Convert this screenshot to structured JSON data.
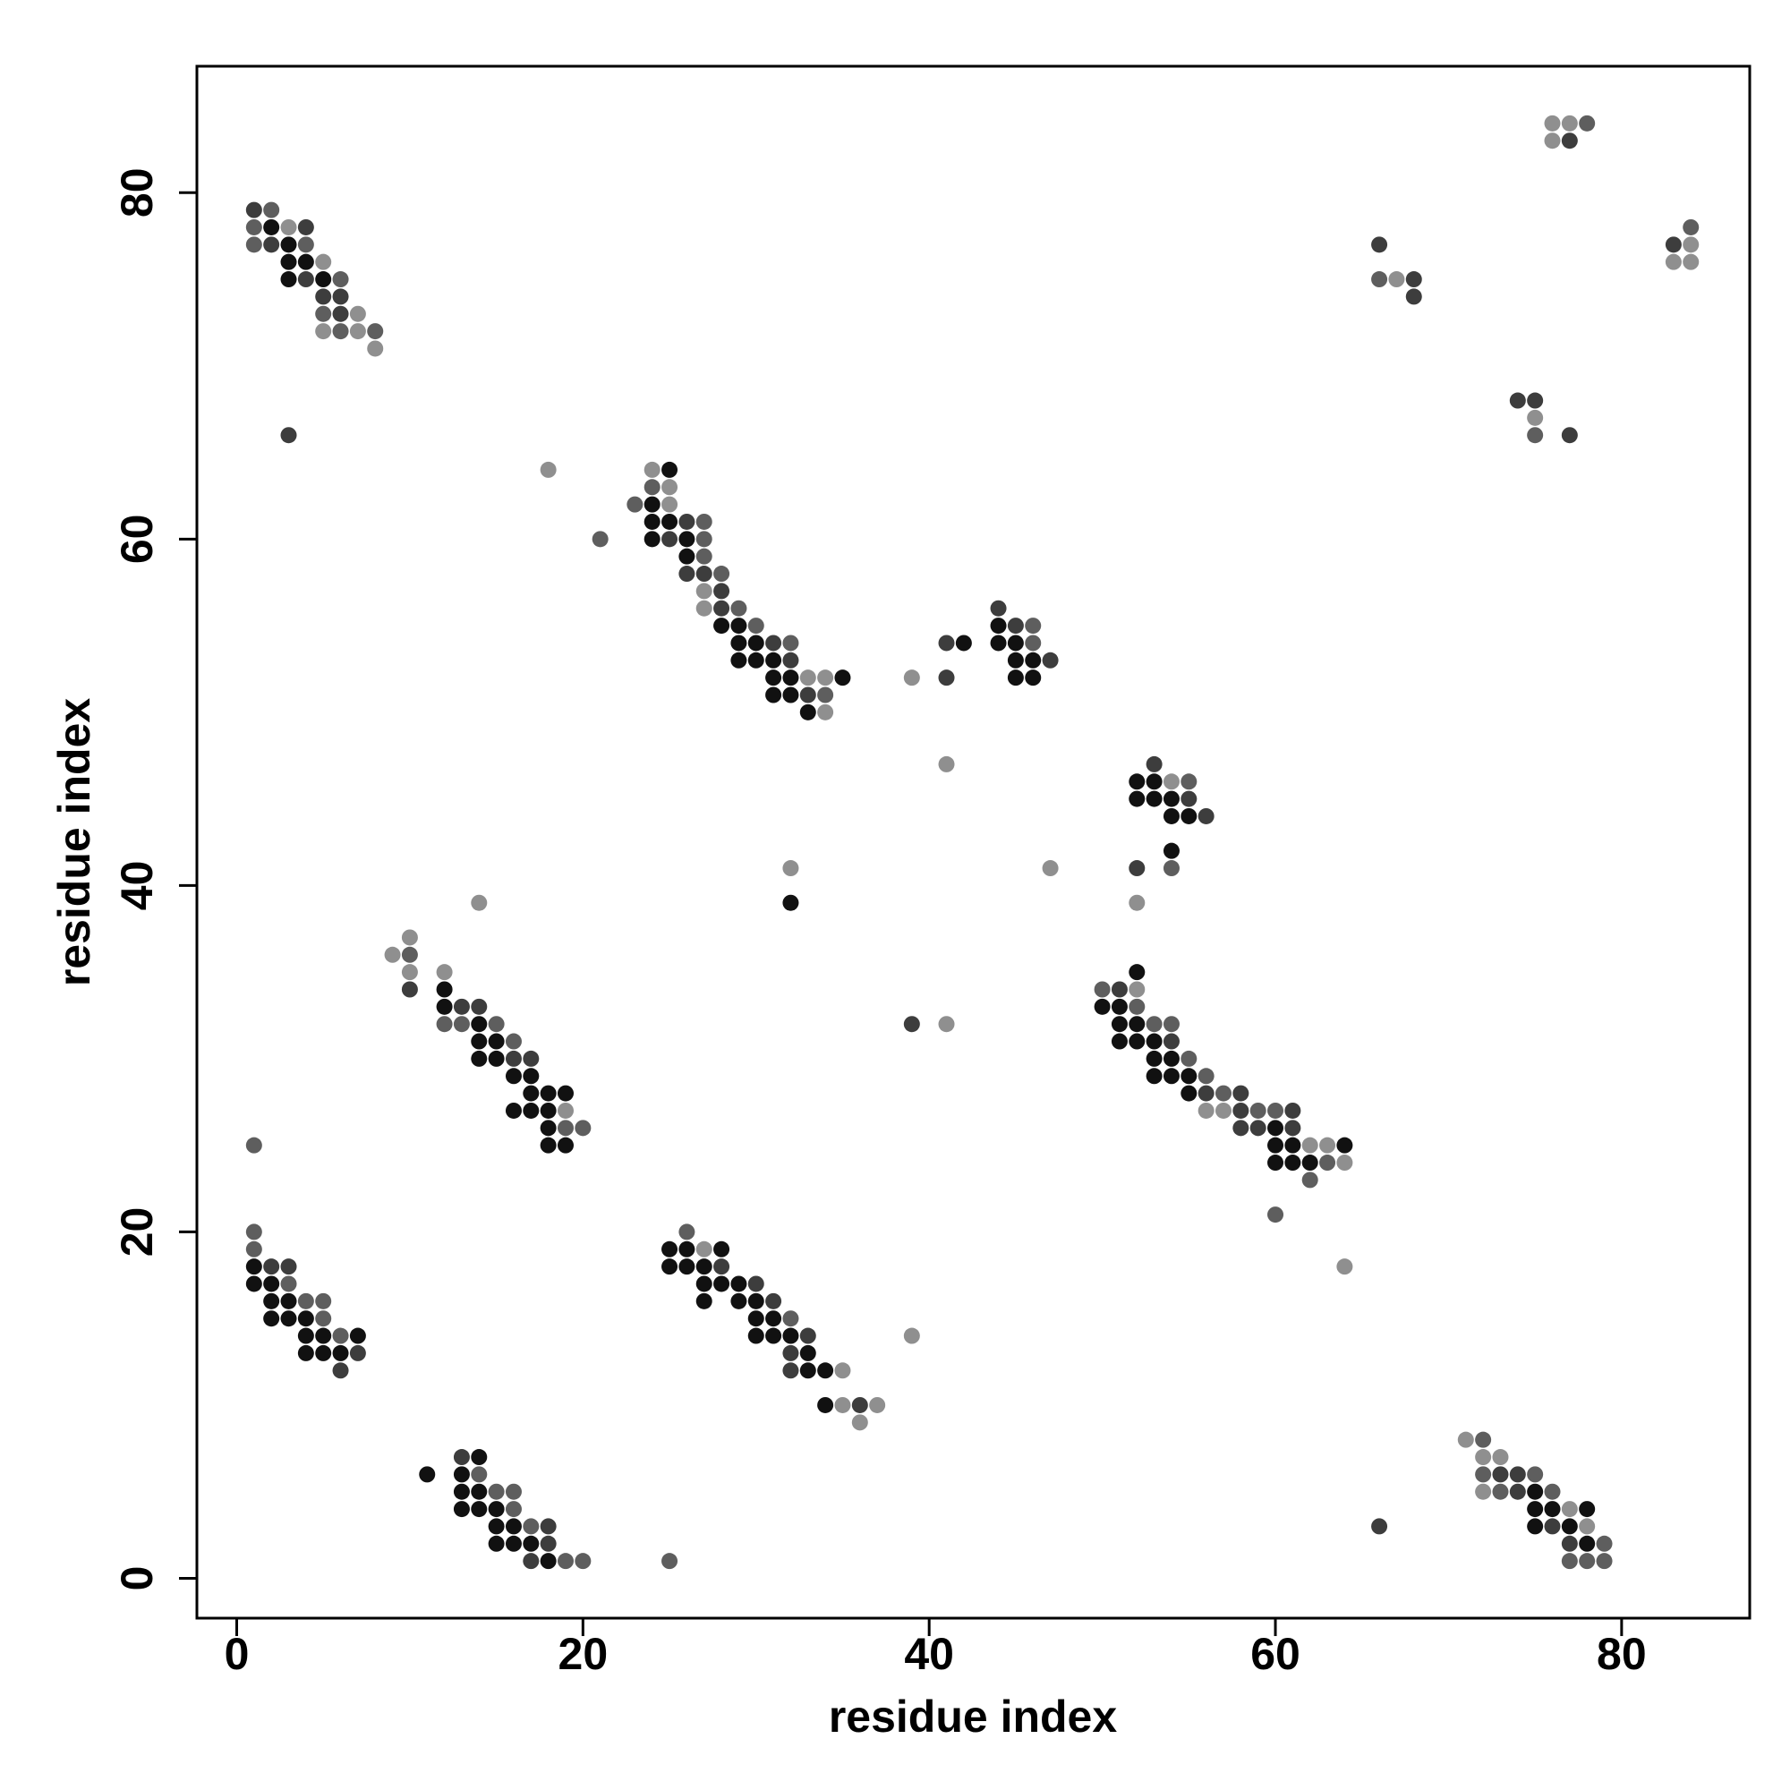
{
  "chart_data": {
    "type": "scatter",
    "xlabel": "residue index",
    "ylabel": "residue index",
    "xlim": [
      -2.3,
      87.4
    ],
    "ylim": [
      -2.3,
      87.3
    ],
    "xticks": [
      0,
      20,
      40,
      60,
      80
    ],
    "yticks": [
      0,
      20,
      40,
      60,
      80
    ],
    "series": [
      {
        "color": "#111111",
        "x": [
          2,
          3,
          3,
          4,
          3,
          5,
          25,
          24,
          24,
          25,
          24,
          26,
          26,
          28,
          29,
          29,
          30,
          29,
          30,
          31,
          31,
          32,
          35,
          31,
          32,
          33,
          42,
          44,
          44,
          45,
          45,
          46,
          45,
          46,
          32,
          52,
          53,
          52,
          53,
          54,
          54,
          55,
          54,
          12,
          12,
          14,
          14,
          15,
          14,
          15,
          16,
          17,
          17,
          18,
          19,
          16,
          17,
          18,
          18,
          18,
          19,
          52,
          50,
          51,
          51,
          52,
          51,
          52,
          53,
          53,
          54,
          53,
          54,
          55,
          55,
          60,
          60,
          61,
          64,
          60,
          61,
          62,
          1,
          1,
          2,
          2,
          3,
          2,
          3,
          4,
          4,
          5,
          7,
          4,
          5,
          6,
          25,
          26,
          28,
          25,
          26,
          27,
          27,
          28,
          29,
          27,
          29,
          30,
          30,
          31,
          30,
          31,
          32,
          33,
          33,
          34,
          34,
          14,
          11,
          13,
          13,
          14,
          13,
          14,
          15,
          15,
          16,
          15,
          16,
          17,
          18,
          75,
          75,
          76,
          78,
          75,
          77,
          78
        ],
        "values": [
          78,
          77,
          76,
          76,
          75,
          75,
          64,
          62,
          61,
          61,
          60,
          60,
          59,
          55,
          55,
          54,
          54,
          53,
          53,
          53,
          52,
          52,
          52,
          51,
          51,
          50,
          54,
          55,
          54,
          54,
          53,
          53,
          52,
          52,
          39,
          46,
          46,
          45,
          45,
          45,
          44,
          44,
          42,
          34,
          33,
          32,
          31,
          31,
          30,
          30,
          29,
          29,
          28,
          28,
          28,
          27,
          27,
          27,
          26,
          25,
          25,
          35,
          33,
          33,
          32,
          32,
          31,
          31,
          31,
          30,
          30,
          29,
          29,
          29,
          28,
          26,
          25,
          25,
          25,
          24,
          24,
          24,
          18,
          17,
          17,
          16,
          16,
          15,
          15,
          15,
          14,
          14,
          14,
          13,
          13,
          13,
          19,
          19,
          19,
          18,
          18,
          18,
          17,
          17,
          17,
          16,
          16,
          16,
          15,
          15,
          14,
          14,
          14,
          13,
          12,
          12,
          10,
          7,
          6,
          6,
          5,
          5,
          4,
          4,
          4,
          3,
          3,
          2,
          2,
          2,
          1,
          5,
          4,
          4,
          4,
          3,
          3,
          2
        ]
      },
      {
        "color": "#3d3d3d",
        "x": [
          1,
          4,
          2,
          4,
          5,
          6,
          6,
          3,
          26,
          25,
          26,
          27,
          28,
          28,
          31,
          32,
          33,
          41,
          41,
          44,
          45,
          47,
          53,
          55,
          56,
          52,
          13,
          14,
          16,
          17,
          10,
          51,
          54,
          56,
          58,
          58,
          61,
          58,
          59,
          61,
          39,
          2,
          3,
          7,
          6,
          28,
          30,
          31,
          33,
          32,
          32,
          36,
          13,
          18,
          18,
          17,
          66,
          73,
          74,
          74,
          76,
          77,
          66,
          68,
          68,
          77,
          74,
          75,
          77,
          83
        ],
        "values": [
          79,
          78,
          77,
          75,
          74,
          74,
          73,
          66,
          61,
          60,
          58,
          58,
          57,
          56,
          54,
          53,
          51,
          52,
          54,
          56,
          55,
          53,
          47,
          45,
          44,
          41,
          33,
          33,
          30,
          30,
          34,
          34,
          31,
          28,
          28,
          27,
          27,
          26,
          26,
          26,
          32,
          18,
          18,
          13,
          12,
          18,
          17,
          16,
          14,
          13,
          12,
          10,
          7,
          3,
          2,
          1,
          3,
          6,
          6,
          5,
          3,
          2,
          77,
          75,
          74,
          83,
          68,
          68,
          66,
          77
        ]
      },
      {
        "color": "#5e5e5e",
        "x": [
          2,
          1,
          1,
          4,
          6,
          5,
          6,
          8,
          21,
          24,
          23,
          27,
          27,
          27,
          28,
          29,
          30,
          32,
          34,
          46,
          46,
          55,
          54,
          10,
          12,
          13,
          15,
          16,
          19,
          20,
          1,
          50,
          52,
          53,
          54,
          55,
          56,
          57,
          59,
          60,
          63,
          62,
          60,
          1,
          1,
          3,
          4,
          5,
          5,
          6,
          26,
          32,
          14,
          15,
          16,
          16,
          17,
          19,
          20,
          25,
          72,
          72,
          75,
          73,
          76,
          79,
          77,
          78,
          79,
          66,
          78,
          75,
          84
        ],
        "values": [
          79,
          78,
          77,
          77,
          75,
          73,
          72,
          72,
          60,
          63,
          62,
          61,
          60,
          59,
          58,
          56,
          55,
          54,
          51,
          55,
          54,
          46,
          41,
          36,
          32,
          32,
          32,
          31,
          26,
          26,
          25,
          34,
          33,
          32,
          32,
          30,
          29,
          28,
          27,
          27,
          24,
          23,
          21,
          20,
          19,
          17,
          16,
          16,
          15,
          14,
          20,
          15,
          6,
          5,
          5,
          4,
          3,
          1,
          1,
          1,
          8,
          6,
          6,
          5,
          5,
          2,
          1,
          1,
          1,
          75,
          84,
          66,
          78
        ]
      },
      {
        "color": "#8f8f8f",
        "x": [
          3,
          5,
          7,
          5,
          7,
          8,
          18,
          24,
          25,
          25,
          27,
          27,
          33,
          34,
          34,
          39,
          41,
          47,
          32,
          54,
          52,
          14,
          10,
          9,
          10,
          12,
          19,
          52,
          56,
          57,
          62,
          63,
          64,
          64,
          27,
          35,
          35,
          37,
          36,
          39,
          41,
          71,
          72,
          73,
          72,
          77,
          78,
          67,
          76,
          77,
          76,
          75,
          84,
          83,
          84
        ],
        "values": [
          78,
          76,
          73,
          72,
          72,
          71,
          64,
          64,
          63,
          62,
          57,
          56,
          52,
          52,
          50,
          52,
          47,
          41,
          41,
          46,
          39,
          39,
          37,
          36,
          35,
          35,
          27,
          34,
          27,
          27,
          25,
          25,
          24,
          18,
          19,
          12,
          10,
          10,
          9,
          14,
          32,
          8,
          7,
          7,
          5,
          4,
          3,
          75,
          84,
          84,
          83,
          67,
          77,
          76,
          76
        ]
      }
    ]
  }
}
